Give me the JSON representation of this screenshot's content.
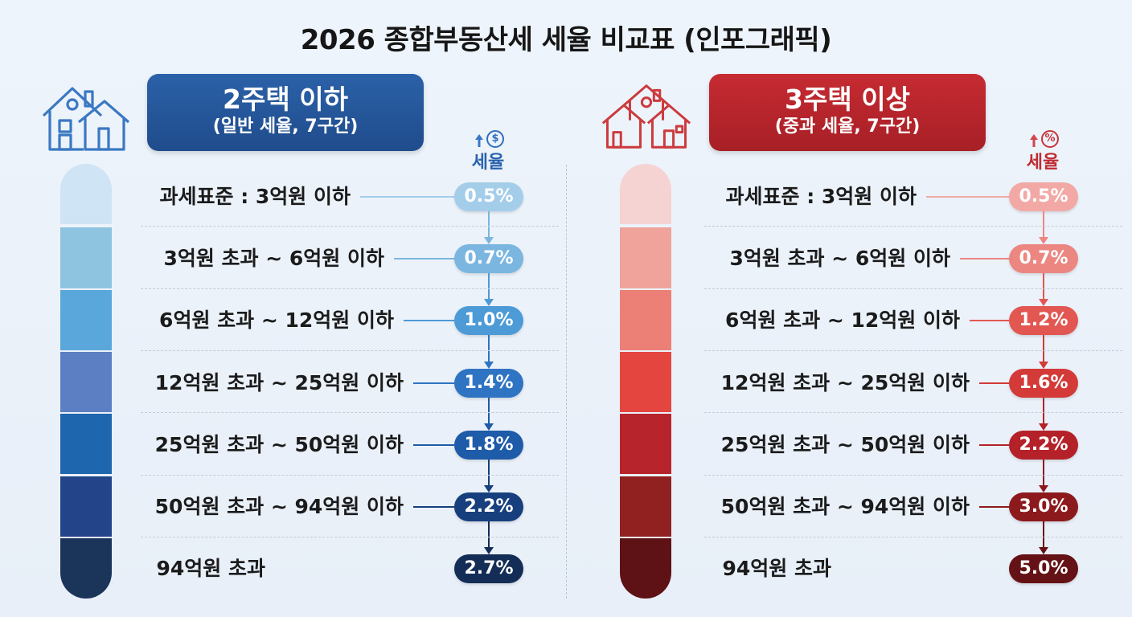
{
  "title": "2026 종합부동산세 세율 비교표 (인포그래픽)",
  "left": {
    "header_title": "2주택 이하",
    "header_sub": "(일반 세율, 7구간)",
    "rate_label": "세율",
    "rate_icon_symbol": "$",
    "icon": "house-icon",
    "accent": "#2a62ad",
    "rows": [
      {
        "label": "과세표준 : 3억원 이하",
        "rate": "0.5%",
        "color": "#a4cdea"
      },
      {
        "label": "3억원 초과 ~ 6억원 이하",
        "rate": "0.7%",
        "color": "#7ab6e0"
      },
      {
        "label": "6억원 초과 ~ 12억원 이하",
        "rate": "1.0%",
        "color": "#4d9bd6"
      },
      {
        "label": "12억원 초과 ~ 25억원 이하",
        "rate": "1.4%",
        "color": "#2f74c3"
      },
      {
        "label": "25억원 초과 ~ 50억원 이하",
        "rate": "1.8%",
        "color": "#1e5ba8"
      },
      {
        "label": "50억원 초과 ~ 94억원 이하",
        "rate": "2.2%",
        "color": "#173f7e"
      },
      {
        "label": "94억원 초과",
        "rate": "2.7%",
        "color": "#142d57"
      }
    ],
    "bar_colors": [
      "#cfe4f4",
      "#8fc4e0",
      "#5aa7db",
      "#5b7fc2",
      "#1e66ad",
      "#234488",
      "#1b3459"
    ]
  },
  "right": {
    "header_title": "3주택 이상",
    "header_sub": "(중과 세율, 7구간)",
    "rate_label": "세율",
    "rate_icon_symbol": "%",
    "icon": "house-icon",
    "accent": "#c02b31",
    "rows": [
      {
        "label": "과세표준 : 3억원 이하",
        "rate": "0.5%",
        "color": "#f2a9a6"
      },
      {
        "label": "3억원 초과 ~ 6억원 이하",
        "rate": "0.7%",
        "color": "#ec8681"
      },
      {
        "label": "6억원 초과 ~ 12억원 이하",
        "rate": "1.2%",
        "color": "#e25752"
      },
      {
        "label": "12억원 초과 ~ 25억원 이하",
        "rate": "1.6%",
        "color": "#d33a38"
      },
      {
        "label": "25억원 초과 ~ 50억원 이하",
        "rate": "2.2%",
        "color": "#b52129"
      },
      {
        "label": "50억원 초과 ~ 94억원 이하",
        "rate": "3.0%",
        "color": "#8c1a1d"
      },
      {
        "label": "94억원 초과",
        "rate": "5.0%",
        "color": "#641215"
      }
    ],
    "bar_colors": [
      "#f6d3d3",
      "#efa39b",
      "#ec7f76",
      "#e4453f",
      "#b8242b",
      "#912021",
      "#5e1215"
    ]
  }
}
